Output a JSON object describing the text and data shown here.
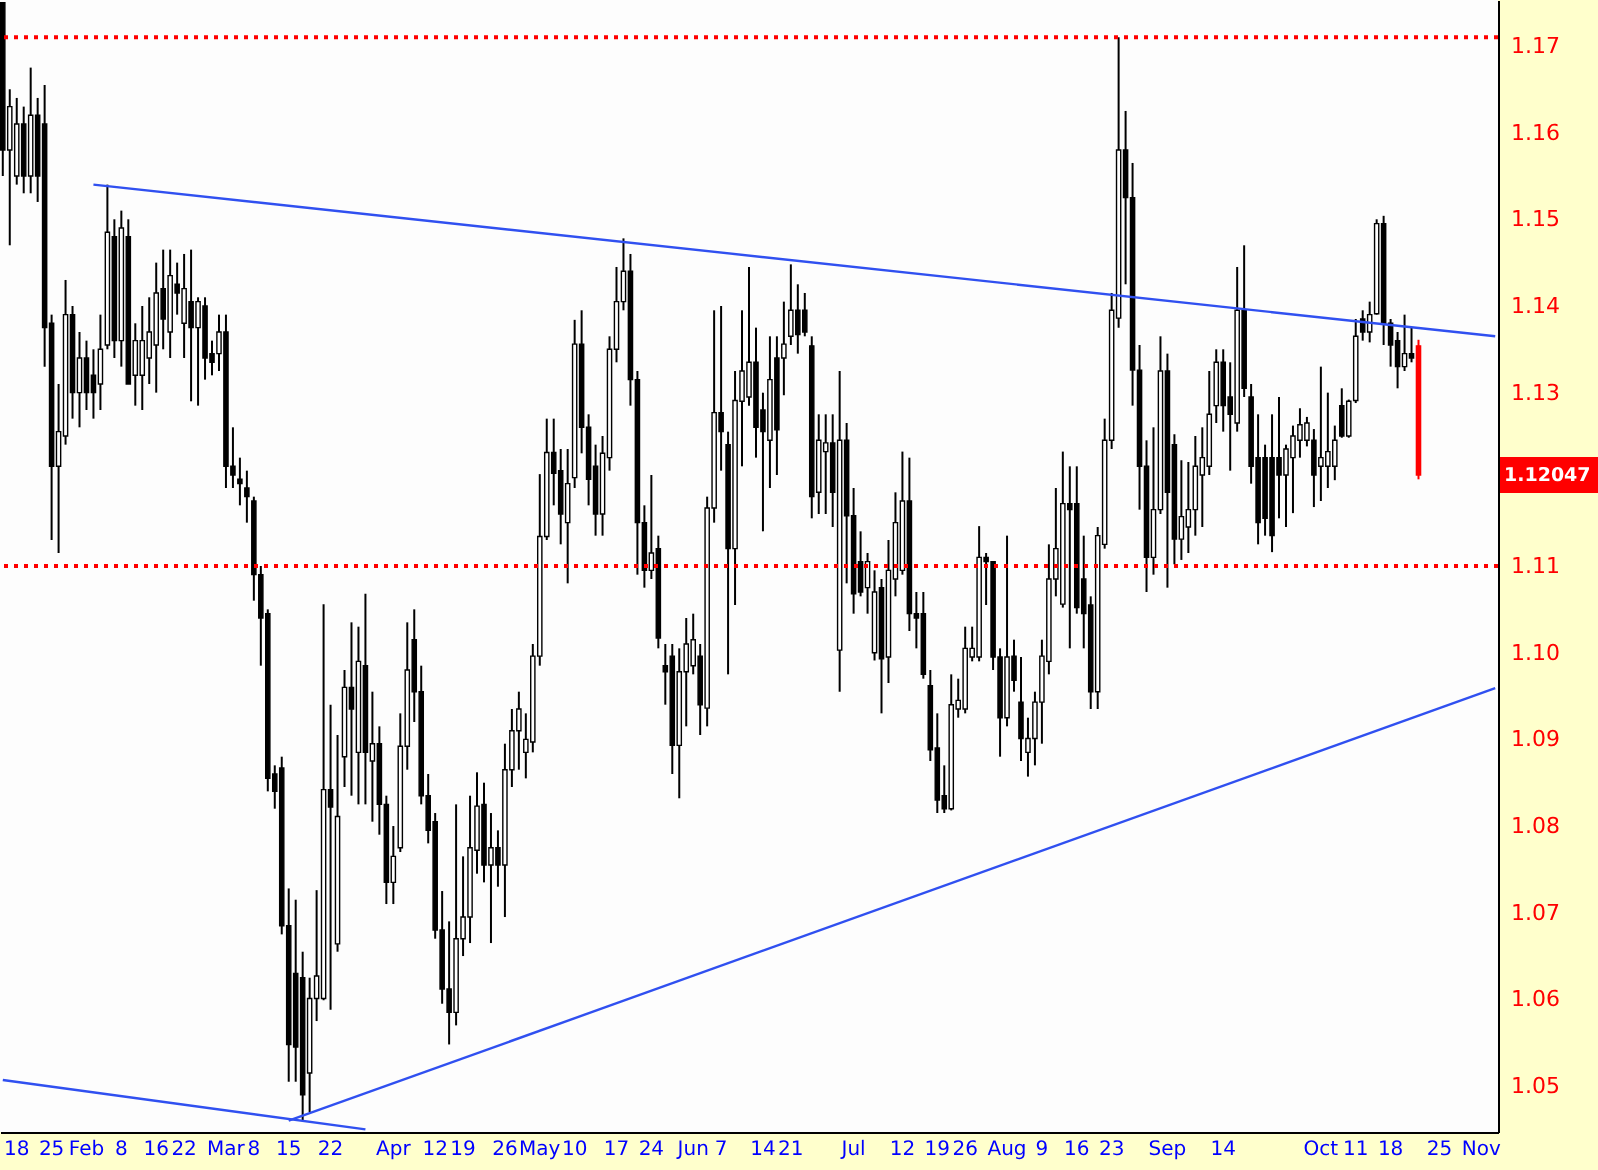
{
  "chart_data": {
    "type": "candlestick",
    "categories": [
      null,
      null,
      "18",
      null,
      null,
      null,
      null,
      "25",
      null,
      null,
      null,
      null,
      "Feb",
      null,
      null,
      null,
      null,
      "8",
      null,
      null,
      null,
      null,
      "16",
      null,
      null,
      null,
      "22",
      null,
      null,
      null,
      null,
      null,
      "Mar",
      null,
      null,
      null,
      "8",
      null,
      null,
      null,
      null,
      "15",
      null,
      null,
      null,
      null,
      null,
      "22",
      null,
      null,
      null,
      null,
      null,
      null,
      null,
      null,
      "Apr",
      null,
      null,
      null,
      null,
      null,
      "12",
      null,
      null,
      null,
      "19",
      null,
      null,
      null,
      null,
      null,
      "26",
      null,
      null,
      null,
      null,
      "May",
      null,
      null,
      null,
      null,
      "10",
      null,
      null,
      null,
      null,
      null,
      "17",
      null,
      null,
      null,
      null,
      "24",
      null,
      null,
      null,
      null,
      null,
      "Jun",
      null,
      null,
      null,
      "7",
      null,
      null,
      null,
      null,
      null,
      "14",
      null,
      null,
      null,
      "21",
      null,
      null,
      null,
      null,
      null,
      null,
      null,
      null,
      "Jul",
      null,
      null,
      null,
      null,
      null,
      null,
      "12",
      null,
      null,
      null,
      null,
      "19",
      null,
      null,
      null,
      "26",
      null,
      null,
      null,
      null,
      null,
      "Aug",
      null,
      null,
      null,
      null,
      "9",
      null,
      null,
      null,
      null,
      "16",
      null,
      null,
      null,
      null,
      "23",
      null,
      null,
      null,
      null,
      null,
      null,
      null,
      "Sep",
      null,
      null,
      null,
      null,
      null,
      null,
      null,
      "14",
      null,
      null,
      null,
      null,
      null,
      null,
      null,
      null,
      null,
      null,
      null,
      null,
      null,
      "Oct",
      null,
      null,
      null,
      null,
      "11",
      null,
      null,
      null,
      null,
      "18",
      null,
      null,
      null,
      null,
      null,
      null,
      "25",
      null,
      null,
      null,
      null,
      null,
      "Nov",
      null,
      null
    ],
    "series": [
      {
        "colors": [
          "#000000",
          "#000000",
          "#000000",
          "#000000",
          "#000000",
          "#000000",
          "#000000",
          "#000000",
          "#000000",
          "#000000",
          "#000000",
          "#000000",
          "#000000",
          "#000000",
          "#000000",
          "#000000",
          "#000000",
          "#000000",
          "#000000",
          "#000000",
          "#000000",
          "#000000",
          "#000000",
          "#000000",
          "#000000",
          "#000000",
          "#000000",
          "#000000",
          "#000000",
          "#000000",
          "#000000",
          "#000000",
          "#000000",
          "#000000",
          "#000000",
          "#000000",
          "#000000",
          "#000000",
          "#000000",
          "#000000",
          "#000000",
          "#000000",
          "#000000",
          "#000000",
          "#000000",
          "#000000",
          "#000000",
          "#000000",
          "#000000",
          "#000000",
          "#000000",
          "#000000",
          "#000000",
          "#000000",
          "#000000",
          "#000000",
          "#000000",
          "#000000",
          "#000000",
          "#000000",
          "#000000",
          "#000000",
          "#000000",
          "#000000",
          "#000000",
          "#000000",
          "#000000",
          "#000000",
          "#000000",
          "#000000",
          "#000000",
          "#000000",
          "#000000",
          "#000000",
          "#000000",
          "#000000",
          "#000000",
          "#000000",
          "#000000",
          "#000000",
          "#000000",
          "#000000",
          "#000000",
          "#000000",
          "#000000",
          "#000000",
          "#000000",
          "#000000",
          "#000000",
          "#000000",
          "#000000",
          "#000000",
          "#000000",
          "#000000",
          "#000000",
          "#000000",
          "#000000",
          "#000000",
          "#000000",
          "#000000",
          "#000000",
          "#000000",
          "#000000",
          "#000000",
          "#000000",
          "#000000",
          "#000000",
          "#000000",
          "#000000",
          "#000000",
          "#000000",
          "#000000",
          "#000000",
          "#000000",
          "#000000",
          "#000000",
          "#000000",
          "#000000",
          "#000000",
          "#000000",
          "#000000",
          "#000000",
          "#000000",
          "#000000",
          "#000000",
          "#000000",
          "#000000",
          "#000000",
          "#000000",
          "#000000",
          "#000000",
          "#000000",
          "#000000",
          "#000000",
          "#000000",
          "#000000",
          "#000000",
          "#000000",
          "#000000",
          "#000000",
          "#000000",
          "#000000",
          "#000000",
          "#000000",
          "#000000",
          "#000000",
          "#000000",
          "#000000",
          "#000000",
          "#000000",
          "#000000",
          "#000000",
          "#000000",
          "#000000",
          "#000000",
          "#000000",
          "#000000",
          "#000000",
          "#000000",
          "#000000",
          "#000000",
          "#000000",
          "#000000",
          "#000000",
          "#000000",
          "#000000",
          "#000000",
          "#000000",
          "#000000",
          "#000000",
          "#000000",
          "#000000",
          "#000000",
          "#000000",
          "#000000",
          "#000000",
          "#000000",
          "#000000",
          "#000000",
          "#000000",
          "#000000",
          "#000000",
          "#000000",
          "#000000",
          "#000000",
          "#000000",
          "#000000",
          "#000000",
          "#000000",
          "#000000",
          "#000000",
          "#000000",
          "#000000",
          "#000000",
          "#000000",
          "#000000",
          "#000000",
          "#000000",
          "#000000",
          "#000000",
          "#000000",
          "#000000",
          "#000000",
          "#ff0000",
          null,
          null,
          null,
          null,
          null,
          null,
          null,
          null,
          null,
          null,
          null
        ],
        "ohlc": [
          [
            1.175,
            1.175,
            1.155,
            1.158
          ],
          [
            1.158,
            1.165,
            1.147,
            1.163
          ],
          [
            1.155,
            1.164,
            1.154,
            1.161
          ],
          [
            1.161,
            1.163,
            1.153,
            1.155
          ],
          [
            1.155,
            1.1675,
            1.153,
            1.162
          ],
          [
            1.162,
            1.164,
            1.152,
            1.155
          ],
          [
            1.161,
            1.1655,
            1.133,
            1.1375
          ],
          [
            1.138,
            1.139,
            1.113,
            1.1215
          ],
          [
            1.1215,
            1.131,
            1.1115,
            1.1255
          ],
          [
            1.125,
            1.143,
            1.124,
            1.139
          ],
          [
            1.139,
            1.14,
            1.127,
            1.13
          ],
          [
            1.13,
            1.137,
            1.126,
            1.134
          ],
          [
            1.134,
            1.136,
            1.128,
            1.13
          ],
          [
            1.132,
            1.135,
            1.127,
            1.13
          ],
          [
            1.131,
            1.139,
            1.128,
            1.135
          ],
          [
            1.1355,
            1.154,
            1.135,
            1.1485
          ],
          [
            1.148,
            1.15,
            1.134,
            1.136
          ],
          [
            1.136,
            1.151,
            1.133,
            1.149
          ],
          [
            1.148,
            1.15,
            1.131,
            1.131
          ],
          [
            1.132,
            1.138,
            1.1285,
            1.136
          ],
          [
            1.132,
            1.14,
            1.128,
            1.136
          ],
          [
            1.134,
            1.141,
            1.131,
            1.137
          ],
          [
            1.1355,
            1.145,
            1.13,
            1.1415
          ],
          [
            1.142,
            1.1465,
            1.135,
            1.1385
          ],
          [
            1.137,
            1.1465,
            1.134,
            1.1435
          ],
          [
            1.1425,
            1.145,
            1.139,
            1.1415
          ],
          [
            1.138,
            1.146,
            1.134,
            1.142
          ],
          [
            1.1405,
            1.1465,
            1.129,
            1.1375
          ],
          [
            1.1375,
            1.141,
            1.1285,
            1.1405
          ],
          [
            1.14,
            1.141,
            1.1315,
            1.134
          ],
          [
            1.1345,
            1.136,
            1.132,
            1.1335
          ],
          [
            1.1345,
            1.139,
            1.1325,
            1.137
          ],
          [
            1.137,
            1.139,
            1.119,
            1.1215
          ],
          [
            1.1215,
            1.126,
            1.119,
            1.1205
          ],
          [
            1.12,
            1.1225,
            1.117,
            1.1195
          ],
          [
            1.119,
            1.121,
            1.115,
            1.118
          ],
          [
            1.1175,
            1.118,
            1.106,
            1.109
          ],
          [
            1.109,
            1.11,
            1.0985,
            1.104
          ],
          [
            1.1045,
            1.105,
            1.084,
            1.0855
          ],
          [
            1.086,
            1.087,
            1.082,
            1.084
          ],
          [
            1.0867,
            1.088,
            1.0675,
            1.0685
          ],
          [
            1.0685,
            1.0728,
            1.0505,
            1.0548
          ],
          [
            1.063,
            1.0715,
            1.0505,
            1.0545
          ],
          [
            1.0625,
            1.0655,
            1.046,
            1.049
          ],
          [
            1.0515,
            1.0625,
            1.047,
            1.0601
          ],
          [
            1.0601,
            1.0726,
            1.0575,
            1.0627
          ],
          [
            1.0601,
            1.1056,
            1.0599,
            1.0842
          ],
          [
            1.0842,
            1.094,
            1.0588,
            1.0822
          ],
          [
            1.0664,
            1.0905,
            1.0655,
            1.0811
          ],
          [
            1.088,
            1.098,
            1.0845,
            1.096
          ],
          [
            1.096,
            1.1035,
            1.0835,
            1.0935
          ],
          [
            1.0885,
            1.103,
            1.0825,
            1.099
          ],
          [
            1.0985,
            1.1068,
            1.0825,
            1.0885
          ],
          [
            1.0875,
            1.0955,
            1.0805,
            1.0895
          ],
          [
            1.0895,
            1.0915,
            1.079,
            1.0825
          ],
          [
            1.0825,
            1.0835,
            1.071,
            1.0735
          ],
          [
            1.0735,
            1.08,
            1.071,
            1.0765
          ],
          [
            1.0775,
            1.093,
            1.077,
            1.0892
          ],
          [
            1.0892,
            1.1035,
            1.0865,
            1.098
          ],
          [
            1.1015,
            1.105,
            1.092,
            1.0955
          ],
          [
            1.0955,
            1.0985,
            1.0825,
            1.0835
          ],
          [
            1.0835,
            1.086,
            1.078,
            1.0795
          ],
          [
            1.0805,
            1.0815,
            1.067,
            1.068
          ],
          [
            1.068,
            1.0725,
            1.0595,
            1.0612
          ],
          [
            1.0612,
            1.069,
            1.0548,
            1.0585
          ],
          [
            1.0585,
            1.0825,
            1.057,
            1.067
          ],
          [
            1.067,
            1.0765,
            1.065,
            1.0695
          ],
          [
            1.0695,
            1.0835,
            1.0665,
            1.0775
          ],
          [
            1.0772,
            1.0862,
            1.0745,
            1.0823
          ],
          [
            1.0825,
            1.085,
            1.0735,
            1.0755
          ],
          [
            1.0755,
            1.0815,
            1.0665,
            1.0775
          ],
          [
            1.0775,
            1.0795,
            1.073,
            1.0755
          ],
          [
            1.0755,
            1.0895,
            1.0695,
            1.0865
          ],
          [
            1.0865,
            1.0935,
            1.0845,
            1.091
          ],
          [
            1.091,
            1.0955,
            1.0865,
            1.0935
          ],
          [
            1.0885,
            1.093,
            1.0855,
            1.09
          ],
          [
            1.0897,
            1.101,
            1.0885,
            1.0996
          ],
          [
            1.0996,
            1.1206,
            1.0985,
            1.1134
          ],
          [
            1.1134,
            1.127,
            1.113,
            1.1231
          ],
          [
            1.1231,
            1.127,
            1.117,
            1.1207
          ],
          [
            1.121,
            1.1235,
            1.1125,
            1.116
          ],
          [
            1.115,
            1.1235,
            1.108,
            1.1195
          ],
          [
            1.1202,
            1.1384,
            1.119,
            1.1356
          ],
          [
            1.1356,
            1.1395,
            1.123,
            1.126
          ],
          [
            1.126,
            1.1275,
            1.117,
            1.12
          ],
          [
            1.1215,
            1.124,
            1.1135,
            1.116
          ],
          [
            1.116,
            1.125,
            1.1135,
            1.123
          ],
          [
            1.1225,
            1.1365,
            1.121,
            1.135
          ],
          [
            1.135,
            1.1445,
            1.1335,
            1.1405
          ],
          [
            1.1405,
            1.1478,
            1.1395,
            1.144
          ],
          [
            1.144,
            1.146,
            1.1285,
            1.1315
          ],
          [
            1.1315,
            1.1325,
            1.109,
            1.115
          ],
          [
            1.115,
            1.117,
            1.1075,
            1.1095
          ],
          [
            1.1095,
            1.1205,
            1.1085,
            1.1115
          ],
          [
            1.112,
            1.1135,
            1.1005,
            1.1017
          ],
          [
            1.0985,
            1.101,
            1.094,
            1.0978
          ],
          [
            1.0996,
            1.101,
            1.086,
            1.0893
          ],
          [
            1.0893,
            1.1005,
            1.0832,
            1.0978
          ],
          [
            1.0978,
            1.104,
            1.0915,
            1.101
          ],
          [
            1.0985,
            1.1045,
            1.0975,
            1.1015
          ],
          [
            1.0996,
            1.101,
            1.0905,
            1.094
          ],
          [
            1.0936,
            1.118,
            1.0915,
            1.1167
          ],
          [
            1.1167,
            1.1395,
            1.115,
            1.1277
          ],
          [
            1.1277,
            1.14,
            1.121,
            1.1255
          ],
          [
            1.124,
            1.1255,
            1.0975,
            1.112
          ],
          [
            1.112,
            1.1325,
            1.1055,
            1.1291
          ],
          [
            1.129,
            1.1395,
            1.1215,
            1.1325
          ],
          [
            1.1295,
            1.1445,
            1.1285,
            1.1335
          ],
          [
            1.1335,
            1.1375,
            1.1225,
            1.126
          ],
          [
            1.128,
            1.13,
            1.114,
            1.1255
          ],
          [
            1.1245,
            1.1365,
            1.119,
            1.1315
          ],
          [
            1.134,
            1.1365,
            1.1205,
            1.1257
          ],
          [
            1.134,
            1.1405,
            1.1297,
            1.1356
          ],
          [
            1.1365,
            1.1448,
            1.1355,
            1.1395
          ],
          [
            1.1395,
            1.1425,
            1.1345,
            1.1367
          ],
          [
            1.1395,
            1.1415,
            1.1365,
            1.137
          ],
          [
            1.1354,
            1.1365,
            1.1155,
            1.118
          ],
          [
            1.1185,
            1.1275,
            1.116,
            1.1245
          ],
          [
            1.1232,
            1.1275,
            1.116,
            1.1242
          ],
          [
            1.1242,
            1.1275,
            1.1145,
            1.1185
          ],
          [
            1.1003,
            1.1325,
            1.0955,
            1.1245
          ],
          [
            1.1245,
            1.1265,
            1.108,
            1.1158
          ],
          [
            1.1158,
            1.119,
            1.1045,
            1.1068
          ],
          [
            1.1105,
            1.114,
            1.1065,
            1.107
          ],
          [
            1.1075,
            1.1115,
            1.1045,
            1.1105
          ],
          [
            1.1,
            1.1095,
            1.0991,
            1.107
          ],
          [
            1.1075,
            1.1085,
            1.093,
            1.0993
          ],
          [
            1.0995,
            1.113,
            1.0965,
            1.1095
          ],
          [
            1.1085,
            1.1185,
            1.1065,
            1.115
          ],
          [
            1.1095,
            1.1232,
            1.109,
            1.1175
          ],
          [
            1.1175,
            1.1225,
            1.1025,
            1.1045
          ],
          [
            1.1045,
            1.107,
            1.1005,
            1.104
          ],
          [
            1.1045,
            1.107,
            1.097,
            1.0975
          ],
          [
            1.0962,
            1.098,
            1.0875,
            1.0888
          ],
          [
            1.089,
            1.093,
            1.0815,
            1.083
          ],
          [
            1.0835,
            1.087,
            1.0815,
            1.082
          ],
          [
            1.082,
            1.0975,
            1.0818,
            1.094
          ],
          [
            1.0935,
            1.097,
            1.0925,
            1.0945
          ],
          [
            1.0935,
            1.103,
            1.093,
            1.1005
          ],
          [
            1.0995,
            1.103,
            1.099,
            1.1005
          ],
          [
            1.0995,
            1.1146,
            1.099,
            1.111
          ],
          [
            1.111,
            1.1115,
            1.1055,
            1.1105
          ],
          [
            1.1105,
            1.1105,
            1.098,
            1.0995
          ],
          [
            1.0995,
            1.1005,
            1.088,
            1.0925
          ],
          [
            1.0925,
            1.1135,
            1.0915,
            1.0995
          ],
          [
            1.0996,
            1.1015,
            1.0955,
            1.0968
          ],
          [
            1.0943,
            1.0995,
            1.0875,
            1.0901
          ],
          [
            1.0885,
            1.0925,
            1.0857,
            1.0901
          ],
          [
            1.0901,
            1.0955,
            1.087,
            1.0943
          ],
          [
            1.0943,
            1.1015,
            1.0895,
            1.0996
          ],
          [
            1.099,
            1.1125,
            1.0975,
            1.1085
          ],
          [
            1.1085,
            1.119,
            1.1065,
            1.112
          ],
          [
            1.1056,
            1.1232,
            1.1052,
            1.1172
          ],
          [
            1.1172,
            1.1215,
            1.1005,
            1.1165
          ],
          [
            1.1172,
            1.1215,
            1.1045,
            1.1052
          ],
          [
            1.1085,
            1.1135,
            1.1005,
            1.1045
          ],
          [
            1.1055,
            1.1065,
            1.0935,
            1.0955
          ],
          [
            1.0955,
            1.1145,
            1.0935,
            1.1135
          ],
          [
            1.1125,
            1.127,
            1.112,
            1.1245
          ],
          [
            1.1245,
            1.1415,
            1.1235,
            1.1395
          ],
          [
            1.1386,
            1.171,
            1.1375,
            1.158
          ],
          [
            1.158,
            1.1625,
            1.1425,
            1.1525
          ],
          [
            1.1525,
            1.1565,
            1.1285,
            1.1326
          ],
          [
            1.1326,
            1.1355,
            1.1165,
            1.1215
          ],
          [
            1.1215,
            1.1245,
            1.107,
            1.111
          ],
          [
            1.111,
            1.126,
            1.109,
            1.1165
          ],
          [
            1.1165,
            1.1365,
            1.116,
            1.1325
          ],
          [
            1.1325,
            1.1345,
            1.1075,
            1.1185
          ],
          [
            1.124,
            1.1252,
            1.1102,
            1.1131
          ],
          [
            1.1131,
            1.1222,
            1.1107,
            1.1157
          ],
          [
            1.1145,
            1.122,
            1.1115,
            1.1165
          ],
          [
            1.1165,
            1.125,
            1.1135,
            1.1215
          ],
          [
            1.1205,
            1.126,
            1.1145,
            1.1225
          ],
          [
            1.1215,
            1.1325,
            1.1205,
            1.1275
          ],
          [
            1.1285,
            1.135,
            1.1265,
            1.1335
          ],
          [
            1.1335,
            1.135,
            1.1255,
            1.1285
          ],
          [
            1.1295,
            1.1335,
            1.121,
            1.1275
          ],
          [
            1.1265,
            1.1445,
            1.1255,
            1.1395
          ],
          [
            1.1395,
            1.147,
            1.1295,
            1.1305
          ],
          [
            1.1295,
            1.131,
            1.1195,
            1.1215
          ],
          [
            1.1225,
            1.1275,
            1.1125,
            1.115
          ],
          [
            1.1225,
            1.124,
            1.1135,
            1.1155
          ],
          [
            1.1225,
            1.1275,
            1.1116,
            1.1135
          ],
          [
            1.1225,
            1.1295,
            1.1155,
            1.1205
          ],
          [
            1.1205,
            1.124,
            1.1145,
            1.1235
          ],
          [
            1.1225,
            1.1262,
            1.1161,
            1.125
          ],
          [
            1.1245,
            1.1282,
            1.1225,
            1.1263
          ],
          [
            1.1245,
            1.1272,
            1.1238,
            1.1265
          ],
          [
            1.1245,
            1.1258,
            1.1168,
            1.1205
          ],
          [
            1.1215,
            1.133,
            1.1175,
            1.1225
          ],
          [
            1.1215,
            1.13,
            1.119,
            1.1232
          ],
          [
            1.1215,
            1.1262,
            1.1199,
            1.1245
          ],
          [
            1.1285,
            1.1305,
            1.1248,
            1.125
          ],
          [
            1.125,
            1.1292,
            1.1248,
            1.129
          ],
          [
            1.1291,
            1.1385,
            1.1288,
            1.1365
          ],
          [
            1.1385,
            1.1395,
            1.136,
            1.137
          ],
          [
            1.137,
            1.1405,
            1.1358,
            1.139
          ],
          [
            1.1391,
            1.15,
            1.139,
            1.1495
          ],
          [
            1.1495,
            1.1504,
            1.1355,
            1.138
          ],
          [
            1.138,
            1.1385,
            1.133,
            1.1355
          ],
          [
            1.136,
            1.137,
            1.1305,
            1.133
          ],
          [
            1.133,
            1.139,
            1.1325,
            1.1345
          ],
          [
            1.1345,
            1.1375,
            1.1335,
            1.134
          ],
          [
            1.1354,
            1.1361,
            1.12,
            1.1205
          ],
          null,
          null,
          null,
          null,
          null,
          null,
          null,
          null,
          null,
          null,
          null
        ]
      },
      {
        "type": "line",
        "color": "#3050f0",
        "values": [
          null,
          null,
          null,
          null,
          null,
          null,
          null,
          null,
          null,
          null,
          null,
          null,
          null,
          1.154,
          null,
          null,
          null,
          null,
          null,
          null,
          null,
          null,
          null,
          null,
          null,
          null,
          null,
          null,
          null,
          null,
          null,
          null,
          null,
          null,
          null,
          null,
          null,
          null,
          null,
          null,
          null,
          null,
          null,
          null,
          null,
          null,
          null,
          null,
          null,
          null,
          null,
          null,
          null,
          null,
          null,
          null,
          null,
          null,
          null,
          null,
          null,
          null,
          null,
          null,
          null,
          null,
          null,
          null,
          null,
          null,
          null,
          null,
          null,
          null,
          null,
          null,
          null,
          null,
          null,
          null,
          null,
          null,
          null,
          null,
          null,
          null,
          null,
          null,
          null,
          null,
          null,
          null,
          null,
          null,
          null,
          null,
          null,
          null,
          null,
          null,
          null,
          null,
          null,
          null,
          null,
          null,
          null,
          null,
          null,
          null,
          null,
          null,
          null,
          null,
          null,
          null,
          null,
          null,
          null,
          null,
          null,
          null,
          null,
          null,
          null,
          null,
          null,
          null,
          null,
          null,
          null,
          null,
          null,
          null,
          null,
          null,
          null,
          null,
          null,
          null,
          null,
          null,
          null,
          null,
          null,
          null,
          null,
          null,
          null,
          null,
          null,
          null,
          null,
          null,
          null,
          null,
          null,
          null,
          null,
          null,
          null,
          null,
          null,
          null,
          null,
          null,
          null,
          null,
          null,
          null,
          null,
          null,
          null,
          null,
          null,
          null,
          null,
          null,
          null,
          null,
          null,
          null,
          null,
          null,
          null,
          null,
          null,
          null,
          null,
          null,
          null,
          null,
          null,
          null,
          null,
          null,
          null,
          null,
          null,
          null,
          null,
          null,
          null,
          null,
          null,
          null,
          null,
          null,
          null,
          null,
          null,
          null,
          null,
          null,
          1.1365
        ]
      },
      {
        "type": "line",
        "color": "#3050f0",
        "values": [
          null,
          null,
          null,
          null,
          null,
          null,
          null,
          null,
          null,
          null,
          null,
          null,
          null,
          null,
          null,
          null,
          null,
          null,
          null,
          null,
          null,
          null,
          null,
          null,
          null,
          null,
          null,
          null,
          null,
          null,
          null,
          null,
          null,
          null,
          null,
          null,
          null,
          null,
          null,
          null,
          null,
          1.046,
          null,
          null,
          null,
          null,
          null,
          null,
          null,
          null,
          null,
          null,
          null,
          null,
          null,
          null,
          null,
          null,
          null,
          null,
          null,
          null,
          null,
          null,
          null,
          null,
          null,
          null,
          null,
          null,
          null,
          null,
          null,
          null,
          null,
          null,
          null,
          null,
          null,
          null,
          null,
          null,
          null,
          null,
          null,
          null,
          null,
          null,
          null,
          null,
          null,
          null,
          null,
          null,
          null,
          null,
          null,
          null,
          null,
          null,
          null,
          null,
          null,
          null,
          null,
          null,
          null,
          null,
          null,
          null,
          null,
          null,
          null,
          null,
          null,
          null,
          null,
          null,
          null,
          null,
          null,
          null,
          null,
          null,
          null,
          null,
          null,
          null,
          null,
          null,
          null,
          null,
          null,
          null,
          null,
          null,
          null,
          null,
          null,
          null,
          null,
          null,
          null,
          null,
          null,
          null,
          null,
          null,
          null,
          null,
          null,
          null,
          null,
          null,
          null,
          null,
          null,
          null,
          null,
          null,
          null,
          null,
          null,
          null,
          null,
          null,
          null,
          null,
          null,
          null,
          null,
          null,
          null,
          null,
          null,
          null,
          null,
          null,
          null,
          null,
          null,
          null,
          null,
          null,
          null,
          null,
          null,
          null,
          null,
          null,
          null,
          null,
          null,
          null,
          null,
          null,
          null,
          null,
          null,
          null,
          null,
          null,
          null,
          null,
          null,
          null,
          null,
          null,
          null,
          null,
          null,
          null,
          null,
          null,
          1.0959
        ]
      },
      {
        "type": "line",
        "color": "#3050f0",
        "values": [
          1.0507,
          null,
          null,
          null,
          null,
          null,
          null,
          null,
          null,
          null,
          null,
          null,
          null,
          null,
          null,
          null,
          null,
          null,
          null,
          null,
          null,
          null,
          null,
          null,
          null,
          null,
          null,
          null,
          null,
          null,
          null,
          null,
          null,
          null,
          null,
          null,
          null,
          null,
          null,
          null,
          null,
          null,
          null,
          null,
          null,
          null,
          null,
          null,
          null,
          null,
          null,
          null,
          1.045,
          null,
          null,
          null,
          null,
          null,
          null,
          null,
          null,
          null,
          null,
          null,
          null,
          null,
          null,
          null,
          null,
          null,
          null,
          null,
          null,
          null,
          null,
          null,
          null,
          null,
          null,
          null,
          null,
          null,
          null,
          null,
          null,
          null,
          null,
          null,
          null,
          null,
          null,
          null,
          null,
          null,
          null,
          null,
          null,
          null,
          null,
          null,
          null,
          null,
          null,
          null,
          null,
          null,
          null,
          null,
          null,
          null,
          null,
          null,
          null,
          null,
          null,
          null,
          null,
          null,
          null,
          null,
          null,
          null,
          null,
          null,
          null,
          null,
          null,
          null,
          null,
          null,
          null,
          null,
          null,
          null,
          null,
          null,
          null,
          null,
          null,
          null,
          null,
          null,
          null,
          null,
          null,
          null,
          null,
          null,
          null,
          null,
          null,
          null,
          null,
          null,
          null,
          null,
          null,
          null,
          null,
          null,
          null,
          null,
          null,
          null,
          null,
          null,
          null,
          null,
          null,
          null,
          null,
          null,
          null,
          null,
          null,
          null,
          null,
          null,
          null,
          null,
          null,
          null,
          null,
          null,
          null,
          null,
          null,
          null,
          null,
          null,
          null,
          null,
          null,
          null,
          null,
          null,
          null,
          null,
          null,
          null,
          null,
          null,
          null,
          null,
          null,
          null,
          null,
          null,
          null,
          null,
          null,
          null,
          null,
          null,
          null
        ]
      }
    ],
    "ylim": [
      1.0447,
      1.1753
    ],
    "yticks": [
      1.05,
      1.06,
      1.07,
      1.08,
      1.09,
      {
        "value": 1.1,
        "label": "1.10"
      },
      1.11,
      1.13,
      1.14,
      1.15,
      1.16,
      1.17
    ],
    "ref_lines": [
      {
        "axis": "y",
        "value": 1.171,
        "color": "#ff0000",
        "line_style": "dotted"
      },
      {
        "axis": "y",
        "value": 1.11,
        "color": "#ff0000",
        "line_style": "dotted"
      }
    ],
    "annotations": [
      "1.12047"
    ],
    "grid": false
  }
}
